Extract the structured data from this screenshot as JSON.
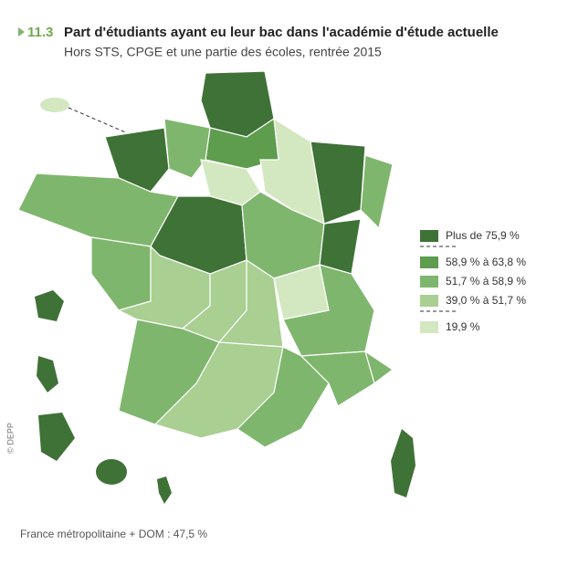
{
  "header": {
    "number": "11.3",
    "title": "Part d'étudiants ayant eu leur bac dans l'académie d'étude actuelle",
    "subtitle": "Hors STS, CPGE et une partie des écoles, rentrée 2015"
  },
  "legend": {
    "items": [
      {
        "label": "Plus de 75,9 %",
        "color": "#3f7236"
      },
      {
        "label": "58,9 % à 63,8 %",
        "color": "#5e9c4e"
      },
      {
        "label": "51,7 % à 58,9 %",
        "color": "#7fb66d"
      },
      {
        "label": "39,0 % à 51,7 %",
        "color": "#a9cf92"
      },
      {
        "label": "19,9 %",
        "color": "#d3e8c0"
      }
    ],
    "separators_after": [
      0,
      3
    ]
  },
  "footnote": "France métropolitaine + DOM : 47,5 %",
  "credit": "© DEPP"
}
